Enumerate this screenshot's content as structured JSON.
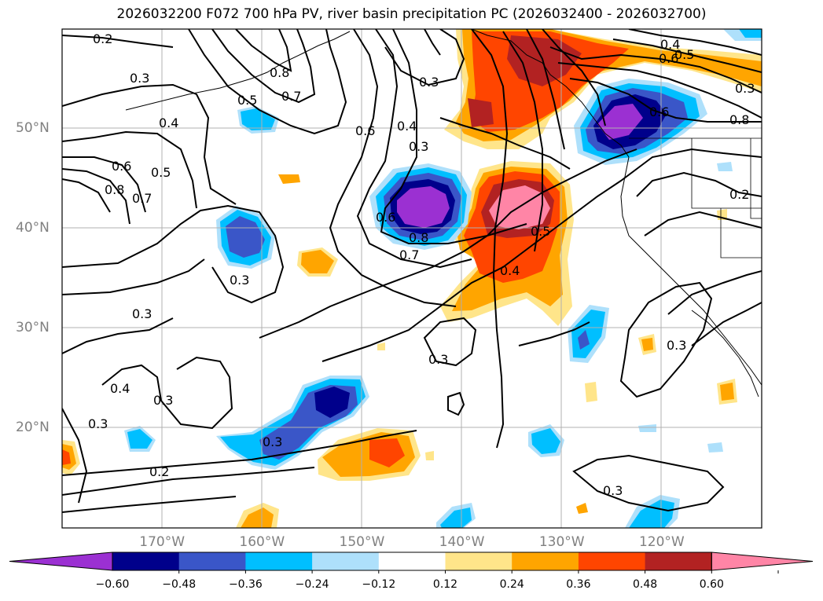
{
  "title": "2026032200 F072 700 hPa PV, river basin precipitation PC (2026032400 - 2026032700)",
  "map": {
    "lat_ticks": [
      {
        "value": 50,
        "label": "50°N"
      },
      {
        "value": 40,
        "label": "40°N"
      },
      {
        "value": 30,
        "label": "30°N"
      },
      {
        "value": 20,
        "label": "20°N"
      }
    ],
    "lon_ticks": [
      {
        "value": -170,
        "label": "170°W"
      },
      {
        "value": -160,
        "label": "160°W"
      },
      {
        "value": -150,
        "label": "150°W"
      },
      {
        "value": -140,
        "label": "140°W"
      },
      {
        "value": -130,
        "label": "130°W"
      },
      {
        "value": -120,
        "label": "120°W"
      }
    ],
    "lon_range": [
      -180,
      -110
    ],
    "lat_range": [
      10,
      60
    ],
    "grid": true,
    "contour_labels": [
      "0.2",
      "0.3",
      "0.8",
      "0.7",
      "0.5",
      "0.4",
      "0.6",
      "0.8",
      "0.7",
      "0.5",
      "0.6",
      "0.4",
      "0.3",
      "0.3",
      "0.6",
      "0.7",
      "0.8",
      "0.6",
      "0.4",
      "0.5",
      "0.4",
      "0.5",
      "0.8",
      "0.6",
      "0.2",
      "0.3",
      "0.3",
      "0.3",
      "0.3",
      "0.4",
      "0.3",
      "0.3",
      "0.2",
      "0.3",
      "0.3",
      "0.3"
    ]
  },
  "colorbar": {
    "levels": [
      -0.72,
      -0.6,
      -0.48,
      -0.36,
      -0.24,
      -0.12,
      0.12,
      0.24,
      0.36,
      0.48,
      0.6,
      0.72
    ],
    "colors": [
      "#9b30d2",
      "#00008b",
      "#3a56c8",
      "#00bfff",
      "#aee0fb",
      "#ffffff",
      "#ffe58a",
      "#ffa500",
      "#ff4500",
      "#b22222",
      "#ff85a6"
    ],
    "tick_labels": [
      "-0.60",
      "-0.48",
      "-0.36",
      "-0.24",
      "-0.12",
      "0.12",
      "0.24",
      "0.36",
      "0.48",
      "0.60"
    ],
    "extend": "both"
  }
}
